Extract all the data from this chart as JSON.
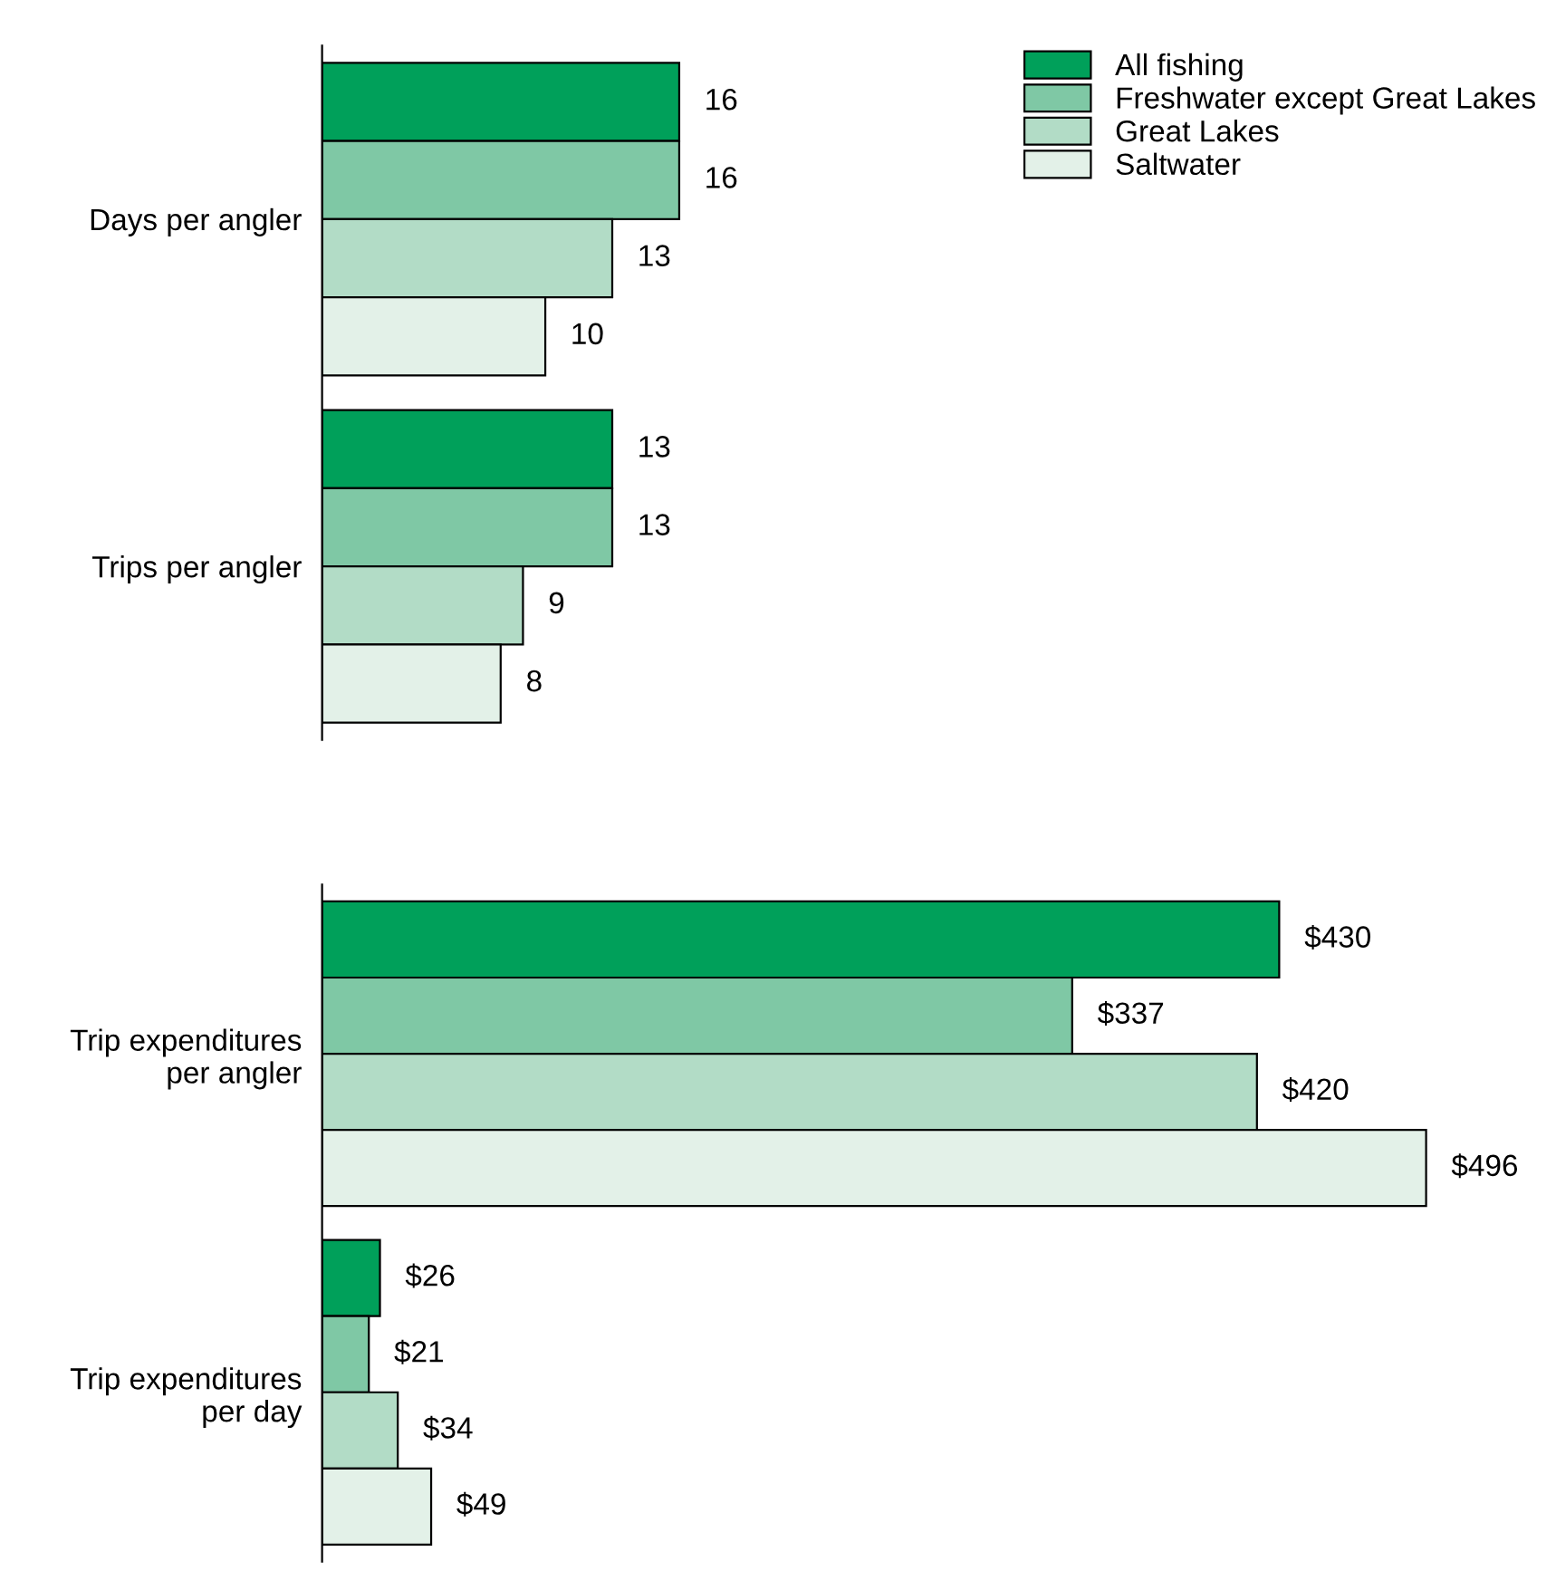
{
  "chart_data": [
    {
      "type": "bar",
      "orientation": "horizontal",
      "categories": [
        "Days per angler",
        "Trips per angler"
      ],
      "series": [
        {
          "name": "All fishing",
          "color": "#00a05a",
          "values": [
            16,
            13
          ]
        },
        {
          "name": "Freshwater except Great Lakes",
          "color": "#7fc8a5",
          "values": [
            16,
            13
          ]
        },
        {
          "name": "Great Lakes",
          "color": "#b2dcc6",
          "values": [
            13,
            9
          ]
        },
        {
          "name": "Saltwater",
          "color": "#e3f1e8",
          "values": [
            10,
            8
          ]
        }
      ],
      "data_labels": true,
      "legend": "top right",
      "tick_labels": "y",
      "grid": false
    },
    {
      "type": "bar",
      "orientation": "horizontal",
      "categories": [
        "Trip expenditures\nper angler",
        "Trip expenditures\nper day"
      ],
      "series": [
        {
          "color": "#00a05a",
          "values": [
            430,
            26
          ],
          "value_labels": [
            "$430",
            "$26"
          ]
        },
        {
          "color": "#7fc8a5",
          "values": [
            337,
            21
          ],
          "value_labels": [
            "$337",
            "$21"
          ]
        },
        {
          "color": "#b2dcc6",
          "values": [
            420,
            34
          ],
          "value_labels": [
            "$420",
            "$34"
          ]
        },
        {
          "color": "#e3f1e8",
          "values": [
            496,
            49
          ],
          "value_labels": [
            "$496",
            "$49"
          ]
        }
      ],
      "tick_labels": "y",
      "grid": false
    }
  ]
}
